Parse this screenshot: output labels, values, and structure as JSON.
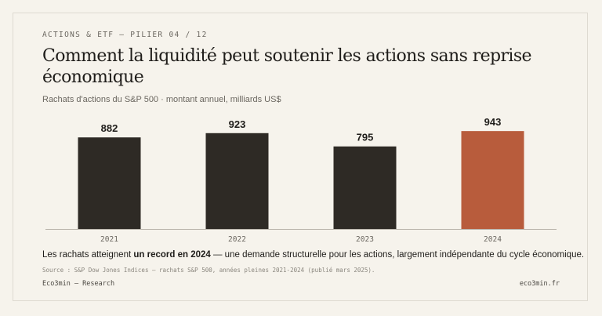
{
  "kicker": "ACTIONS & ETF — PILIER 04 / 12",
  "title": "Comment la liquidité peut soutenir les actions sans reprise économique",
  "subtitle": "Rachats d'actions du S&P 500 · montant annuel, milliards US$",
  "takeaway": {
    "before": "Les rachats atteignent ",
    "highlight": "un record en 2024",
    "after": " — une demande structurelle pour les actions, largement indépendante du cycle économique."
  },
  "source": "Source : S&P Dow Jones Indices — rachats S&P 500, années pleines 2021-2024 (publié mars 2025).",
  "footer": {
    "left": "Eco3min — Research",
    "right": "eco3min.fr"
  },
  "colors": {
    "bar": "#2e2a25",
    "highlight": "#b85c3c",
    "baseline": "#b8b3aa",
    "label": "#1f1d1a",
    "tick": "#6b6760"
  },
  "chart_data": {
    "type": "bar",
    "categories": [
      "2021",
      "2022",
      "2023",
      "2024"
    ],
    "values": [
      882,
      923,
      795,
      943
    ],
    "highlight_index": 3,
    "ylabel": "",
    "xlabel": "",
    "title": "",
    "ylim": [
      0,
      1000
    ],
    "grid": false,
    "legend": "none"
  }
}
